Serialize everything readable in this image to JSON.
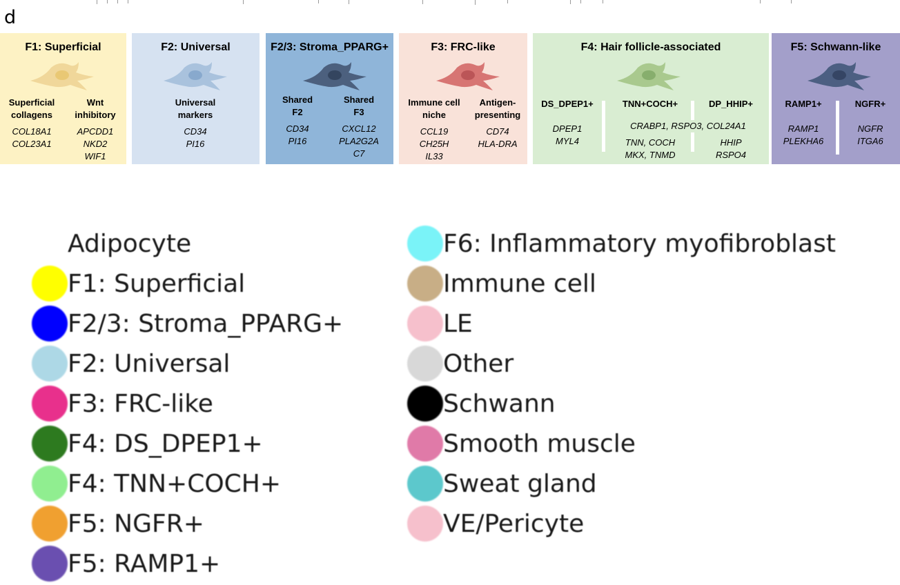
{
  "panel_letter": "d",
  "panels": {
    "f1": {
      "title": "F1: Superficial",
      "icon": "cell-icon",
      "bg": "#fdf2c4",
      "cell_color": "#f0d79a",
      "col1": {
        "header": [
          "Superficial",
          "collagens"
        ],
        "genes": [
          "COL18A1",
          "COL23A1"
        ]
      },
      "col2": {
        "header": [
          "Wnt",
          "inhibitory"
        ],
        "genes": [
          "APCDD1",
          "NKD2",
          "WIF1"
        ]
      }
    },
    "f2": {
      "title": "F2: Universal",
      "icon": "cell-icon",
      "bg": "#d6e2f1",
      "cell_color": "#a9c2dd",
      "col1": {
        "header": [
          "Universal",
          "markers"
        ],
        "genes": [
          "CD34",
          "PI16"
        ]
      }
    },
    "f23": {
      "title": "F2/3: Stroma_PPARG+",
      "icon": "cell-icon",
      "bg": "#8fb5d9",
      "cell_color": "#4c607e",
      "col1": {
        "header": [
          "Shared",
          "F2"
        ],
        "genes": [
          "CD34",
          "PI16"
        ]
      },
      "col2": {
        "header": [
          "Shared",
          "F3"
        ],
        "genes": [
          "CXCL12",
          "PLA2G2A",
          "C7"
        ]
      }
    },
    "f3": {
      "title": "F3: FRC-like",
      "icon": "cell-icon",
      "bg": "#f9e2d9",
      "cell_color": "#d77573",
      "col1": {
        "header": [
          "Immune cell",
          "niche"
        ],
        "genes": [
          "CCL19",
          "CH25H",
          "IL33"
        ]
      },
      "col2": {
        "header": [
          "Antigen-",
          "presenting"
        ],
        "genes": [
          "CD74",
          "HLA-DRA"
        ]
      }
    },
    "f4": {
      "title": "F4: Hair follicle-associated",
      "icon": "cell-icon",
      "bg": "#d9edd2",
      "cell_color": "#a9c98e",
      "col1": {
        "header": [
          "DS_DPEP1+"
        ],
        "genes": [
          "DPEP1",
          "MYL4"
        ]
      },
      "col2": {
        "header": [
          "TNN+COCH+"
        ],
        "genes": [
          "TNN, COCH",
          "MKX, TNMD"
        ]
      },
      "col3": {
        "header": [
          "DP_HHIP+"
        ],
        "genes": [
          "HHIP",
          "RSPO4"
        ]
      },
      "shared_genes": "CRABP1, RSPO3, COL24A1"
    },
    "f5": {
      "title": "F5: Schwann-like",
      "icon": "cell-icon",
      "bg": "#a39fca",
      "cell_color": "#4c5f82",
      "col1": {
        "header": [
          "RAMP1+"
        ],
        "genes": [
          "RAMP1",
          "PLEKHA6"
        ]
      },
      "col2": {
        "header": [
          "NGFR+"
        ],
        "genes": [
          "NGFR",
          "ITGA6"
        ]
      }
    }
  },
  "legend": {
    "left": [
      {
        "label": "Adipocyte",
        "color": "#ffffff"
      },
      {
        "label": "F1: Superficial",
        "color": "#ffff00"
      },
      {
        "label": "F2/3: Stroma_PPARG+",
        "color": "#0000ff"
      },
      {
        "label": "F2: Universal",
        "color": "#add8e6"
      },
      {
        "label": "F3: FRC-like",
        "color": "#e8308c"
      },
      {
        "label": "F4: DS_DPEP1+",
        "color": "#2d7a1f"
      },
      {
        "label": "F4: TNN+COCH+",
        "color": "#90ee90"
      },
      {
        "label": "F5: NGFR+",
        "color": "#f0a030"
      },
      {
        "label": "F5: RAMP1+",
        "color": "#6a4fb0"
      }
    ],
    "right": [
      {
        "label": "F6: Inflammatory myofibroblast",
        "color": "#7af3f8"
      },
      {
        "label": "Immune cell",
        "color": "#c8ae86"
      },
      {
        "label": "LE",
        "color": "#f6c0cc"
      },
      {
        "label": "Other",
        "color": "#d8d8d8"
      },
      {
        "label": "Schwann",
        "color": "#000000"
      },
      {
        "label": "Smooth muscle",
        "color": "#e07aa8"
      },
      {
        "label": "Sweat gland",
        "color": "#5cc8cc"
      },
      {
        "label": "VE/Pericyte",
        "color": "#f6c0cc"
      }
    ]
  }
}
